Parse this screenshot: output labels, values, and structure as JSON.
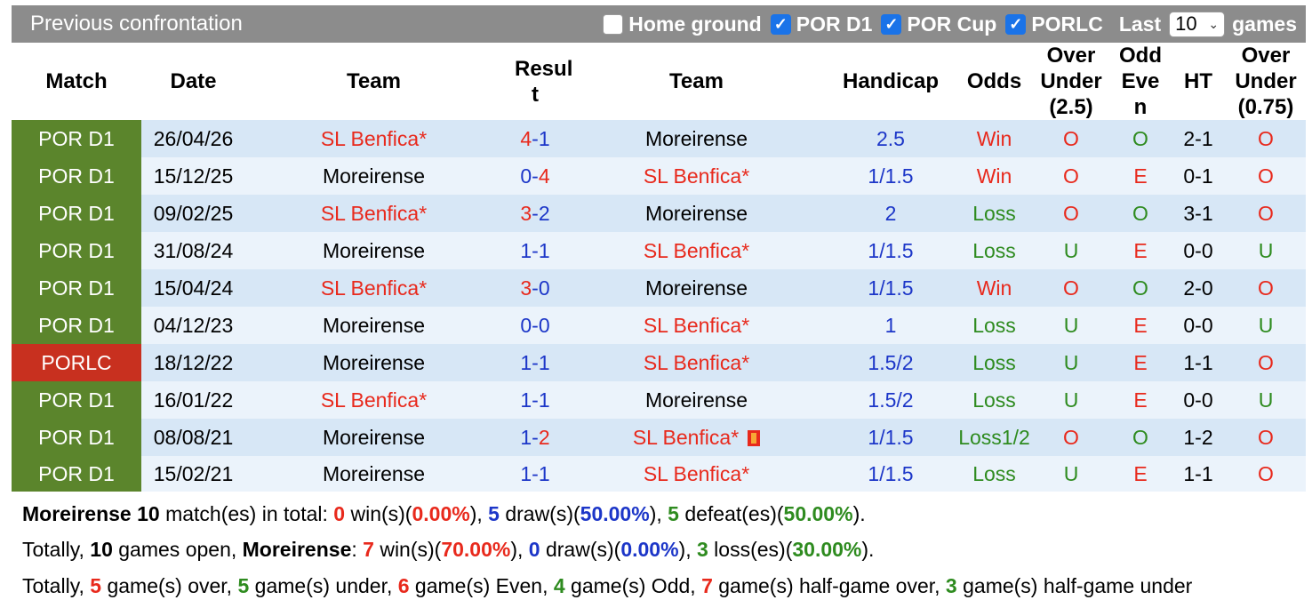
{
  "header": {
    "title": "Previous confrontation",
    "filters": [
      {
        "label": "Home ground",
        "checked": false
      },
      {
        "label": "POR D1",
        "checked": true
      },
      {
        "label": "POR Cup",
        "checked": true
      },
      {
        "label": "PORLC",
        "checked": true
      }
    ],
    "last_label": "Last",
    "last_value": "10",
    "games_label": "games"
  },
  "columns": {
    "match": "Match",
    "date": "Date",
    "team1": "Team",
    "result": "Resul t",
    "team2": "Team",
    "handicap": "Handicap",
    "odds": "Odds",
    "ou25": "Over Under (2.5)",
    "oddeven": "Odd Eve n",
    "ht": "HT",
    "ou075": "Over Under (0.75)"
  },
  "rows": [
    {
      "match": "POR D1",
      "date": "26/04/26",
      "team1": "SL Benfica",
      "team1_star": "*",
      "h": "4",
      "sep": "-",
      "a": "1",
      "team2": "Moreirense",
      "team2_star": "",
      "handicap": "2.5",
      "odds": "Win",
      "ou": "O",
      "oe": "O",
      "ht": "2-1",
      "ou075": "O"
    },
    {
      "match": "POR D1",
      "date": "15/12/25",
      "team1": "Moreirense",
      "team1_star": "",
      "h": "0",
      "sep": "-",
      "a": "4",
      "team2": "SL Benfica",
      "team2_star": "*",
      "handicap": "1/1.5",
      "odds": "Win",
      "ou": "O",
      "oe": "E",
      "ht": "0-1",
      "ou075": "O"
    },
    {
      "match": "POR D1",
      "date": "09/02/25",
      "team1": "SL Benfica",
      "team1_star": "*",
      "h": "3",
      "sep": "-",
      "a": "2",
      "team2": "Moreirense",
      "team2_star": "",
      "handicap": "2",
      "odds": "Loss",
      "ou": "O",
      "oe": "O",
      "ht": "3-1",
      "ou075": "O"
    },
    {
      "match": "POR D1",
      "date": "31/08/24",
      "team1": "Moreirense",
      "team1_star": "",
      "h": "1",
      "sep": "-",
      "a": "1",
      "team2": "SL Benfica",
      "team2_star": "*",
      "handicap": "1/1.5",
      "odds": "Loss",
      "ou": "U",
      "oe": "E",
      "ht": "0-0",
      "ou075": "U"
    },
    {
      "match": "POR D1",
      "date": "15/04/24",
      "team1": "SL Benfica",
      "team1_star": "*",
      "h": "3",
      "sep": "-",
      "a": "0",
      "team2": "Moreirense",
      "team2_star": "",
      "handicap": "1/1.5",
      "odds": "Win",
      "ou": "O",
      "oe": "O",
      "ht": "2-0",
      "ou075": "O"
    },
    {
      "match": "POR D1",
      "date": "04/12/23",
      "team1": "Moreirense",
      "team1_star": "",
      "h": "0",
      "sep": "-",
      "a": "0",
      "team2": "SL Benfica",
      "team2_star": "*",
      "handicap": "1",
      "odds": "Loss",
      "ou": "U",
      "oe": "E",
      "ht": "0-0",
      "ou075": "U"
    },
    {
      "match": "PORLC",
      "date": "18/12/22",
      "team1": "Moreirense",
      "team1_star": "",
      "h": "1",
      "sep": "-",
      "a": "1",
      "team2": "SL Benfica",
      "team2_star": "*",
      "handicap": "1.5/2",
      "odds": "Loss",
      "ou": "U",
      "oe": "E",
      "ht": "1-1",
      "ou075": "O"
    },
    {
      "match": "POR D1",
      "date": "16/01/22",
      "team1": "SL Benfica",
      "team1_star": "*",
      "h": "1",
      "sep": "-",
      "a": "1",
      "team2": "Moreirense",
      "team2_star": "",
      "handicap": "1.5/2",
      "odds": "Loss",
      "ou": "U",
      "oe": "E",
      "ht": "0-0",
      "ou075": "U"
    },
    {
      "match": "POR D1",
      "date": "08/08/21",
      "team1": "Moreirense",
      "team1_star": "",
      "h": "1",
      "sep": "-",
      "a": "2",
      "team2": "SL Benfica",
      "team2_star": "*",
      "handicap": "1/1.5",
      "odds": "Loss1/2",
      "ou": "O",
      "oe": "O",
      "ht": "1-2",
      "ou075": "O"
    },
    {
      "match": "POR D1",
      "date": "15/02/21",
      "team1": "Moreirense",
      "team1_star": "",
      "h": "1",
      "sep": "-",
      "a": "1",
      "team2": "SL Benfica",
      "team2_star": "*",
      "handicap": "1/1.5",
      "odds": "Loss",
      "ou": "U",
      "oe": "E",
      "ht": "1-1",
      "ou075": "O"
    }
  ],
  "summary": {
    "line1": {
      "team": "Moreirense",
      "total": "10",
      "t1": " match(es) in total: ",
      "wins": "0",
      "t2": " win(s)(",
      "win_pct": "0.00%",
      "t3": "), ",
      "draws": "5",
      "t4": " draw(s)(",
      "draw_pct": "50.00%",
      "t5": "), ",
      "defeats": "5",
      "t6": " defeat(es)(",
      "defeat_pct": "50.00%",
      "t7": ")."
    },
    "line2": {
      "t0": "Totally, ",
      "open": "10",
      "t1": " games open, ",
      "team": "Moreirense",
      "t2": ": ",
      "wins": "7",
      "t3": " win(s)(",
      "win_pct": "70.00%",
      "t4": "), ",
      "draws": "0",
      "t5": " draw(s)(",
      "draw_pct": "0.00%",
      "t6": "), ",
      "losses": "3",
      "t7": " loss(es)(",
      "loss_pct": "30.00%",
      "t8": ")."
    },
    "line3": {
      "t0": "Totally, ",
      "over": "5",
      "t1": " game(s) over, ",
      "under": "5",
      "t2": " game(s) under, ",
      "even": "6",
      "t3": " game(s) Even, ",
      "odd": "4",
      "t4": " game(s) Odd, ",
      "half_over": "7",
      "t5": " game(s) half-game over, ",
      "half_under": "3",
      "t6": " game(s) half-game under"
    }
  },
  "colors": {
    "win": "#e8291c",
    "draw": "#1c36c8",
    "loss": "#2e8b1f",
    "d1": "#5b852c",
    "lc": "#c8301f"
  },
  "icons": {
    "checkbox": "checkbox-icon",
    "chevron": "chevron-down-icon",
    "card": "red-card-icon"
  }
}
